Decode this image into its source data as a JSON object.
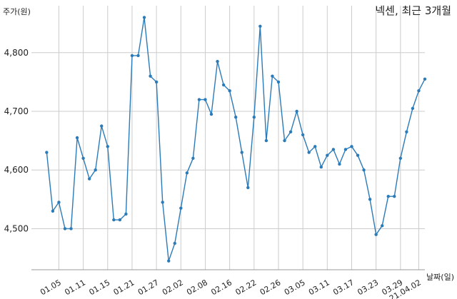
{
  "chart_data": {
    "type": "line",
    "title": "넥센, 최근 3개월",
    "xlabel": "날짜(일)",
    "ylabel": "주가(원)",
    "ylim": [
      4430,
      4880
    ],
    "yticks": [
      4500,
      4600,
      4700,
      4800
    ],
    "ytick_labels": [
      "4,500",
      "4,600",
      "4,700",
      "4,800"
    ],
    "xlim": [
      -2.5,
      62
    ],
    "xticks": [
      {
        "index": 2,
        "label": "01.05"
      },
      {
        "index": 6,
        "label": "01.11"
      },
      {
        "index": 10,
        "label": "01.15"
      },
      {
        "index": 14,
        "label": "01.21"
      },
      {
        "index": 18,
        "label": "01.27"
      },
      {
        "index": 22,
        "label": "02.02"
      },
      {
        "index": 26,
        "label": "02.08"
      },
      {
        "index": 30,
        "label": "02.16"
      },
      {
        "index": 34,
        "label": "02.22"
      },
      {
        "index": 38,
        "label": "02.26"
      },
      {
        "index": 42,
        "label": "03.05"
      },
      {
        "index": 46,
        "label": "03.11"
      },
      {
        "index": 50,
        "label": "03.17"
      },
      {
        "index": 54,
        "label": "03.23"
      },
      {
        "index": 58,
        "label": "03.29"
      },
      {
        "index": 61,
        "label": "21.04.02"
      }
    ],
    "grid": true,
    "color": "#2b7bb9",
    "values": [
      4630,
      4530,
      4545,
      4500,
      4500,
      4655,
      4620,
      4585,
      4600,
      4675,
      4640,
      4515,
      4515,
      4525,
      4795,
      4795,
      4860,
      4760,
      4750,
      4545,
      4445,
      4475,
      4535,
      4595,
      4620,
      4720,
      4720,
      4695,
      4785,
      4745,
      4735,
      4690,
      4630,
      4570,
      4690,
      4845,
      4650,
      4760,
      4750,
      4650,
      4665,
      4700,
      4660,
      4630,
      4640,
      4605,
      4625,
      4635,
      4610,
      4635,
      4640,
      4625,
      4600,
      4550,
      4490,
      4505,
      4555,
      4555,
      4620,
      4665,
      4705,
      4735,
      4755
    ]
  }
}
